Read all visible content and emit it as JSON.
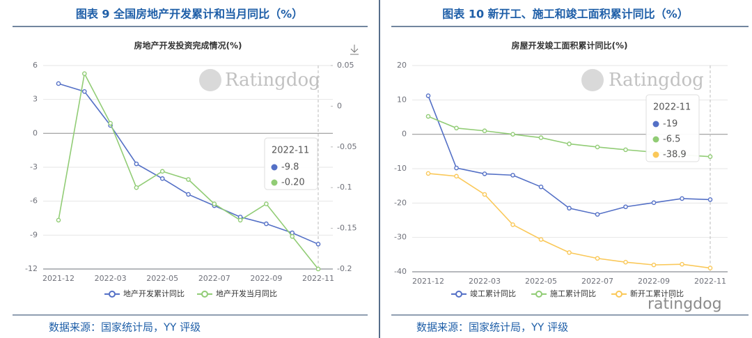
{
  "panels": [
    {
      "heading": "图表 9 全国房地产开发累计和当月同比（%）",
      "source": "数据来源：国家统计局，YY 评级",
      "watermark": "Ratingdog"
    },
    {
      "heading": "图表 10 新开工、施工和竣工面积累计同比（%）",
      "source": "数据来源：国家统计局，YY 评级",
      "watermark": "Ratingdog"
    }
  ],
  "footer_watermark": "ratingdog",
  "chart_data": [
    {
      "type": "line",
      "title": "房地产开发投资完成情况(%)",
      "categories": [
        "2021-12",
        null,
        "2022-03",
        null,
        "2022-05",
        null,
        "2022-07",
        null,
        "2022-09",
        null,
        "2022-11"
      ],
      "ylim": [
        -12,
        6
      ],
      "yticks": [
        6,
        3,
        0,
        -3,
        -6,
        -9,
        -12
      ],
      "y2lim": [
        -0.2,
        0.05
      ],
      "y2ticks": [
        0.05,
        0,
        -0.05,
        -0.1,
        -0.15,
        -0.2
      ],
      "grid": true,
      "series": [
        {
          "name": "地产开发累计同比",
          "color": "#5470c6",
          "values": [
            4.4,
            3.7,
            0.7,
            -2.7,
            -4.0,
            -5.4,
            -6.4,
            -7.4,
            -8.0,
            -8.8,
            -9.8
          ]
        },
        {
          "name": "地产开发当月同比",
          "color": "#91cc75",
          "axis": "y2",
          "values": [
            -0.14,
            0.04,
            -0.021,
            -0.1,
            -0.08,
            -0.09,
            -0.12,
            -0.14,
            -0.12,
            -0.16,
            -0.2
          ]
        }
      ],
      "tooltip": {
        "title": "2022-11",
        "values": [
          "-9.8",
          "-0.20"
        ]
      }
    },
    {
      "type": "line",
      "title": "房屋开发竣工面积累计同比(%)",
      "categories": [
        "2021-12",
        null,
        "2022-03",
        null,
        "2022-05",
        null,
        "2022-07",
        null,
        "2022-09",
        null,
        "2022-11"
      ],
      "ylim": [
        -40,
        20
      ],
      "yticks": [
        20,
        10,
        0,
        -10,
        -20,
        -30,
        -40
      ],
      "grid": true,
      "series": [
        {
          "name": "竣工累计同比",
          "color": "#5470c6",
          "values": [
            11.2,
            -9.8,
            -11.5,
            -11.9,
            -15.3,
            -21.5,
            -23.3,
            -21.1,
            -19.9,
            -18.7,
            -19
          ]
        },
        {
          "name": "施工累计同比",
          "color": "#91cc75",
          "values": [
            5.2,
            1.8,
            1.0,
            0.0,
            -1.0,
            -2.8,
            -3.7,
            -4.5,
            -5.2,
            -6.0,
            -6.5
          ]
        },
        {
          "name": "新开工累计同比",
          "color": "#fac858",
          "values": [
            -11.4,
            -12.2,
            -17.5,
            -26.3,
            -30.6,
            -34.4,
            -36.1,
            -37.2,
            -38.0,
            -37.8,
            -38.9
          ]
        }
      ],
      "tooltip": {
        "title": "2022-11",
        "values": [
          "-19",
          "-6.5",
          "-38.9"
        ]
      }
    }
  ]
}
